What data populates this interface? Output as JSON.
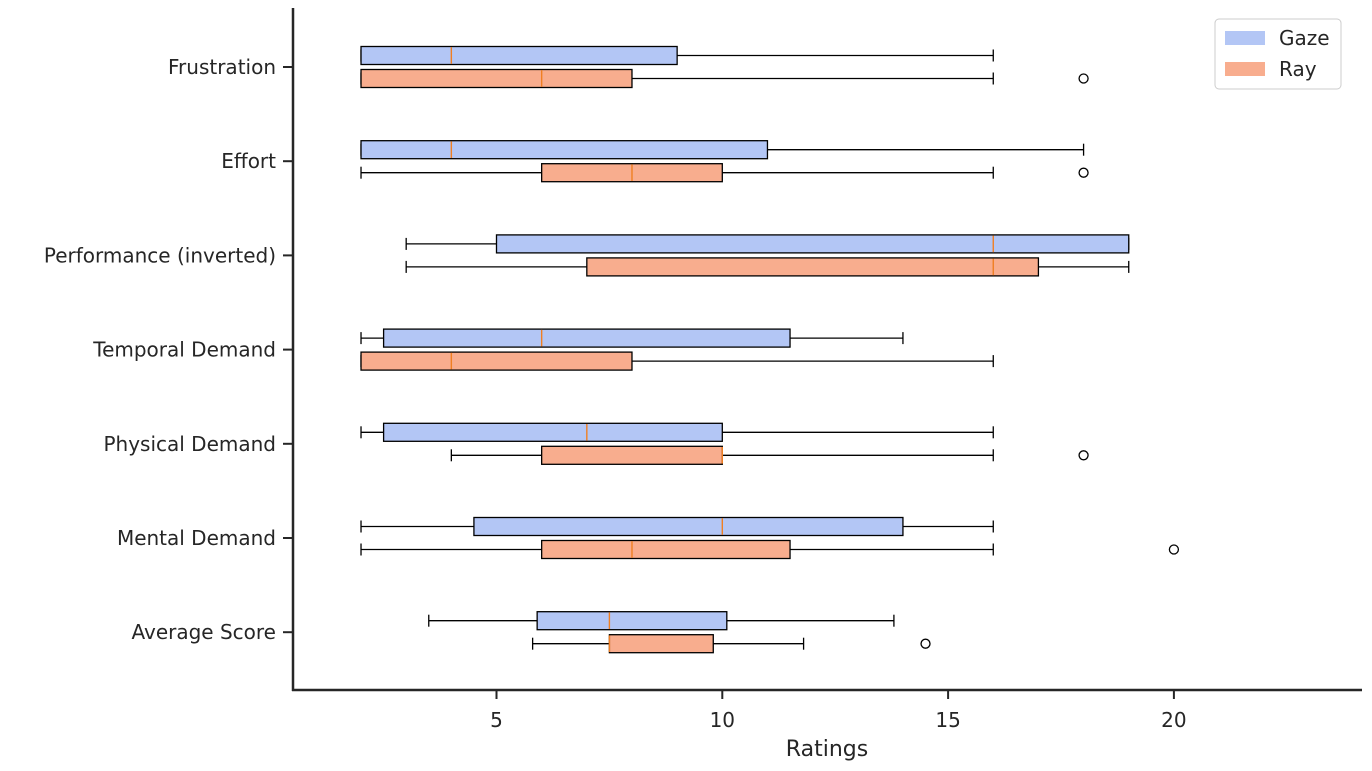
{
  "chart_data": {
    "type": "boxplot",
    "orientation": "horizontal",
    "title": "",
    "xlabel": "Ratings",
    "ylabel": "",
    "xlim": [
      0.45,
      24.2
    ],
    "x_ticks": [
      5,
      10,
      15,
      20
    ],
    "x_tick_labels": [
      "5",
      "10",
      "15",
      "20"
    ],
    "categories": [
      "Frustration",
      "Effort",
      "Performance (inverted)",
      "Temporal Demand",
      "Physical Demand",
      "Mental Demand",
      "Average Score"
    ],
    "grid": false,
    "legend": {
      "position": "top-right"
    },
    "series": [
      {
        "name": "Gaze",
        "color": "#b3c6f5",
        "boxes": [
          {
            "whisker_low": 2,
            "q1": 2,
            "median": 4,
            "q3": 9,
            "whisker_high": 16,
            "outliers": []
          },
          {
            "whisker_low": 2,
            "q1": 2,
            "median": 4,
            "q3": 11,
            "whisker_high": 18,
            "outliers": []
          },
          {
            "whisker_low": 3,
            "q1": 5,
            "median": 16,
            "q3": 19,
            "whisker_high": 19,
            "outliers": []
          },
          {
            "whisker_low": 2,
            "q1": 2.5,
            "median": 6,
            "q3": 11.5,
            "whisker_high": 14,
            "outliers": []
          },
          {
            "whisker_low": 2,
            "q1": 2.5,
            "median": 7,
            "q3": 10,
            "whisker_high": 16,
            "outliers": []
          },
          {
            "whisker_low": 2,
            "q1": 4.5,
            "median": 10,
            "q3": 14,
            "whisker_high": 16,
            "outliers": []
          },
          {
            "whisker_low": 3.5,
            "q1": 5.9,
            "median": 7.5,
            "q3": 10.1,
            "whisker_high": 13.8,
            "outliers": []
          }
        ]
      },
      {
        "name": "Ray",
        "color": "#f8ad8e",
        "boxes": [
          {
            "whisker_low": 2,
            "q1": 2,
            "median": 6,
            "q3": 8,
            "whisker_high": 16,
            "outliers": [
              18
            ]
          },
          {
            "whisker_low": 2,
            "q1": 6,
            "median": 8,
            "q3": 10,
            "whisker_high": 16,
            "outliers": [
              18
            ]
          },
          {
            "whisker_low": 3,
            "q1": 7,
            "median": 16,
            "q3": 17,
            "whisker_high": 19,
            "outliers": []
          },
          {
            "whisker_low": 2,
            "q1": 2,
            "median": 4,
            "q3": 8,
            "whisker_high": 16,
            "outliers": []
          },
          {
            "whisker_low": 4,
            "q1": 6,
            "median": 10,
            "q3": 10,
            "whisker_high": 16,
            "outliers": [
              18
            ]
          },
          {
            "whisker_low": 2,
            "q1": 6,
            "median": 8,
            "q3": 11.5,
            "whisker_high": 16,
            "outliers": [
              20
            ]
          },
          {
            "whisker_low": 5.8,
            "q1": 7.5,
            "median": 7.5,
            "q3": 9.8,
            "whisker_high": 11.8,
            "outliers": [
              14.5
            ]
          }
        ]
      }
    ],
    "colors": {
      "axis": "#262626",
      "whisker": "#000000",
      "median": "#f07f22",
      "text": "#262626"
    }
  }
}
